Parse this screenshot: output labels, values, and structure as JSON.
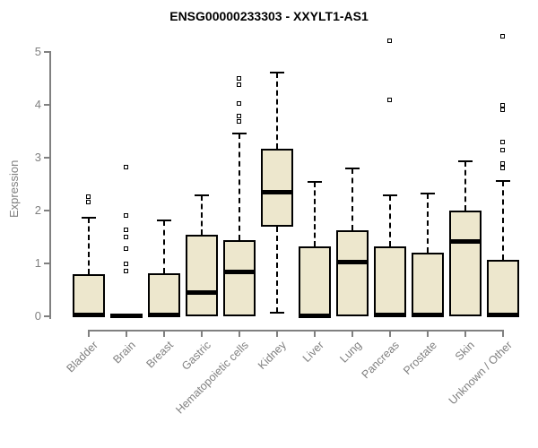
{
  "title": "ENSG00000233303 - XXYLT1-AS1",
  "ylabel": "Expression",
  "colors": {
    "box_fill": "#EDE7CD",
    "box_border": "#000000",
    "axis": "#808080",
    "tick_label": "#808080",
    "title": "#000000"
  },
  "chart_data": {
    "type": "boxplot",
    "title": "ENSG00000233303 - XXYLT1-AS1",
    "xlabel": "",
    "ylabel": "Expression",
    "ylim": [
      0,
      5
    ],
    "yticks": [
      0,
      1,
      2,
      3,
      4,
      5
    ],
    "grid": false,
    "legend": false,
    "categories": [
      "Bladder",
      "Brain",
      "Breast",
      "Gastric",
      "Hematopoietic cells",
      "Kidney",
      "Liver",
      "Lung",
      "Pancreas",
      "Prostate",
      "Skin",
      "Unknown / Other"
    ],
    "series": [
      {
        "name": "Bladder",
        "slug": "bladder",
        "whisker_low": 0,
        "q1": 0,
        "median": 0.03,
        "q3": 0.79,
        "whisker_high": 1.87,
        "outliers": [
          2.15,
          2.25
        ]
      },
      {
        "name": "Brain",
        "slug": "brain",
        "whisker_low": 0,
        "q1": 0,
        "median": 0.02,
        "q3": 0.04,
        "whisker_high": 0.05,
        "outliers": [
          0.85,
          0.98,
          1.27,
          1.5,
          1.63,
          1.89,
          2.82
        ]
      },
      {
        "name": "Breast",
        "slug": "breast",
        "whisker_low": 0,
        "q1": 0,
        "median": 0.03,
        "q3": 0.82,
        "whisker_high": 1.82,
        "outliers": []
      },
      {
        "name": "Gastric",
        "slug": "gastric",
        "whisker_low": 0,
        "q1": 0,
        "median": 0.46,
        "q3": 1.55,
        "whisker_high": 2.28,
        "outliers": []
      },
      {
        "name": "Hematopoietic cells",
        "slug": "hematopoietic-cells",
        "whisker_low": 0,
        "q1": 0,
        "median": 0.84,
        "q3": 1.44,
        "whisker_high": 3.46,
        "outliers": [
          3.67,
          3.78,
          4.01,
          4.37,
          4.49
        ]
      },
      {
        "name": "Kidney",
        "slug": "kidney",
        "whisker_low": 0.07,
        "q1": 1.7,
        "median": 2.36,
        "q3": 3.17,
        "whisker_high": 4.61,
        "outliers": []
      },
      {
        "name": "Liver",
        "slug": "liver",
        "whisker_low": 0,
        "q1": 0,
        "median": 0.02,
        "q3": 1.32,
        "whisker_high": 2.55,
        "outliers": []
      },
      {
        "name": "Lung",
        "slug": "lung",
        "whisker_low": 0,
        "q1": 0,
        "median": 1.03,
        "q3": 1.63,
        "whisker_high": 2.79,
        "outliers": []
      },
      {
        "name": "Pancreas",
        "slug": "pancreas",
        "whisker_low": 0,
        "q1": 0,
        "median": 0.03,
        "q3": 1.32,
        "whisker_high": 2.28,
        "outliers": [
          4.08,
          5.2
        ]
      },
      {
        "name": "Prostate",
        "slug": "prostate",
        "whisker_low": 0,
        "q1": 0,
        "median": 0.03,
        "q3": 1.21,
        "whisker_high": 2.33,
        "outliers": []
      },
      {
        "name": "Skin",
        "slug": "skin",
        "whisker_low": 0,
        "q1": 0,
        "median": 1.43,
        "q3": 2.0,
        "whisker_high": 2.93,
        "outliers": []
      },
      {
        "name": "Unknown / Other",
        "slug": "unknown-other",
        "whisker_low": 0,
        "q1": 0,
        "median": 0.03,
        "q3": 1.07,
        "whisker_high": 2.56,
        "outliers": [
          2.79,
          2.88,
          3.13,
          3.29,
          3.89,
          3.98,
          5.28
        ]
      }
    ]
  }
}
